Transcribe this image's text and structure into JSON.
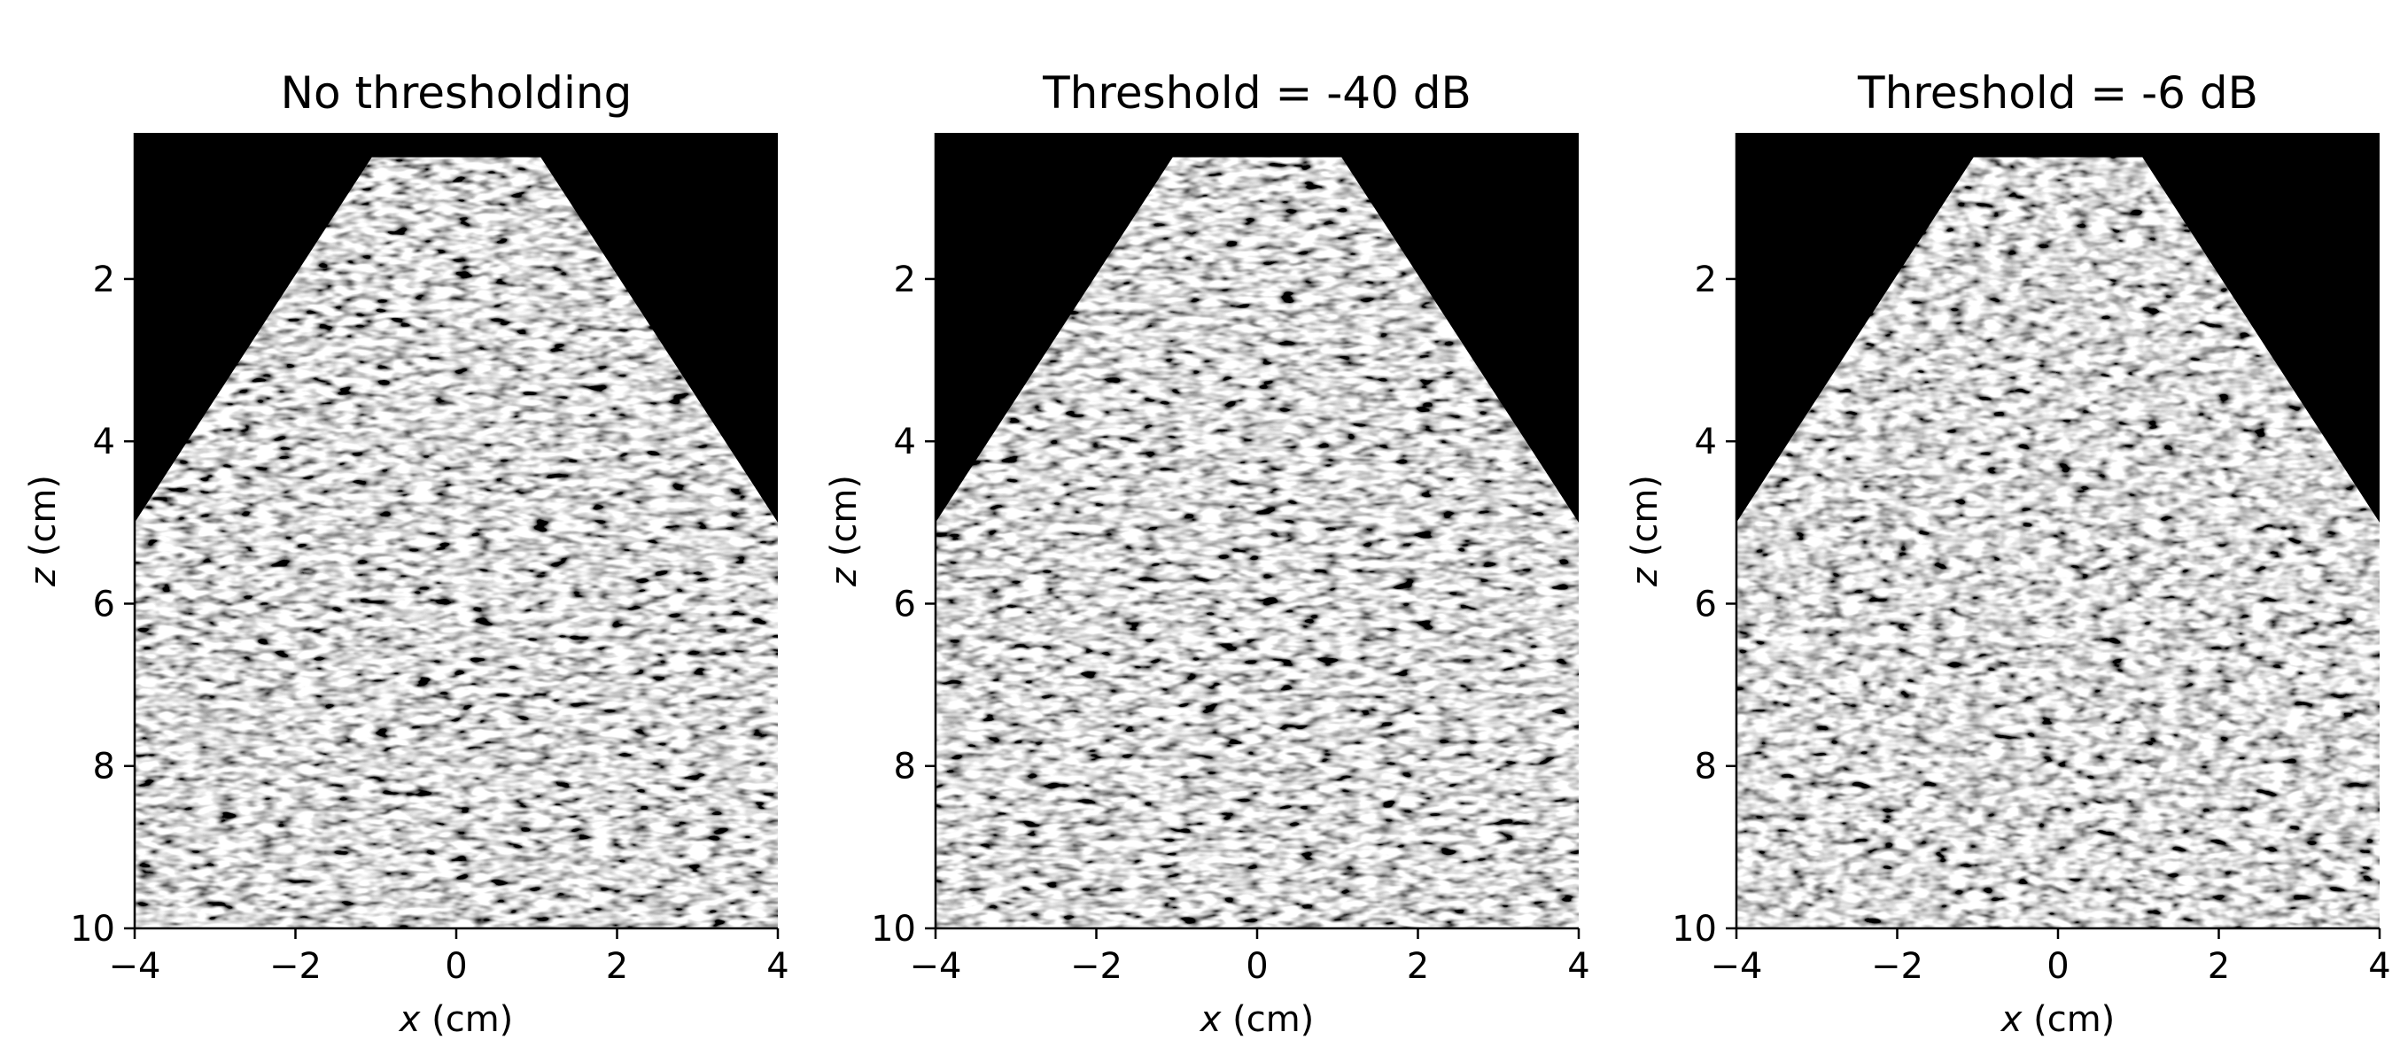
{
  "chart_data": [
    {
      "type": "heatmap",
      "title": "No thresholding",
      "xlabel": "x (cm)",
      "ylabel": "z (cm)",
      "xlim": [
        -4,
        4
      ],
      "ylim": [
        10,
        0.2
      ],
      "xticks": [
        "−4",
        "−2",
        "0",
        "2",
        "4"
      ],
      "yticks": [
        "2",
        "4",
        "6",
        "8",
        "10"
      ],
      "xtick_values": [
        -4,
        -2,
        0,
        2,
        4
      ],
      "ytick_values": [
        2,
        4,
        6,
        8,
        10
      ],
      "colormap": "gray",
      "threshold_db": null
    },
    {
      "type": "heatmap",
      "title": "Threshold = -40 dB",
      "xlabel": "x (cm)",
      "ylabel": "z (cm)",
      "xlim": [
        -4,
        4
      ],
      "ylim": [
        10,
        0.2
      ],
      "xticks": [
        "−4",
        "−2",
        "0",
        "2",
        "4"
      ],
      "yticks": [
        "2",
        "4",
        "6",
        "8",
        "10"
      ],
      "xtick_values": [
        -4,
        -2,
        0,
        2,
        4
      ],
      "ytick_values": [
        2,
        4,
        6,
        8,
        10
      ],
      "colormap": "gray",
      "threshold_db": -40
    },
    {
      "type": "heatmap",
      "title": "Threshold = -6 dB",
      "xlabel": "x (cm)",
      "ylabel": "z (cm)",
      "xlim": [
        -4,
        4
      ],
      "ylim": [
        10,
        0.2
      ],
      "xticks": [
        "−4",
        "−2",
        "0",
        "2",
        "4"
      ],
      "yticks": [
        "2",
        "4",
        "6",
        "8",
        "10"
      ],
      "xtick_values": [
        -4,
        -2,
        0,
        2,
        4
      ],
      "ytick_values": [
        2,
        4,
        6,
        8,
        10
      ],
      "colormap": "gray",
      "threshold_db": -6
    }
  ],
  "colors": {
    "background": "#000000",
    "speckle_light": "#d8d8d8",
    "speckle_dark": "#202020"
  }
}
